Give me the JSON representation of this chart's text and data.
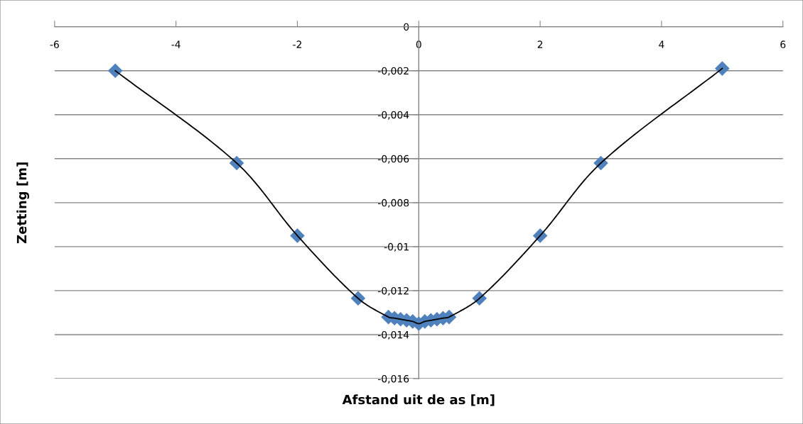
{
  "chart_data": {
    "type": "scatter",
    "xlabel": "Afstand uit de as [m]",
    "ylabel": "Zetting [m]",
    "xlim": [
      -6,
      6
    ],
    "xticks": [
      -6,
      -4,
      -2,
      0,
      2,
      4,
      6
    ],
    "ylim": [
      -0.016,
      0
    ],
    "yticks": [
      {
        "value": -0.016,
        "label": "-0,016"
      },
      {
        "value": -0.014,
        "label": "-0,014"
      },
      {
        "value": -0.012,
        "label": "-0,012"
      },
      {
        "value": -0.01,
        "label": "-0,01"
      },
      {
        "value": -0.008,
        "label": "-0,008"
      },
      {
        "value": -0.006,
        "label": "-0,006"
      },
      {
        "value": -0.004,
        "label": "-0,004"
      },
      {
        "value": -0.002,
        "label": "-0,002"
      },
      0
    ],
    "grid": "y",
    "series": [
      {
        "type": "line",
        "color": "#000000",
        "marker": "none",
        "line_style": "solid",
        "x": [
          -5,
          -3,
          -2,
          -1,
          -0.5,
          -0.4,
          -0.3,
          -0.2,
          -0.1,
          0,
          0.1,
          0.2,
          0.3,
          0.4,
          0.5,
          1,
          2,
          3,
          5
        ],
        "values": [
          -0.002,
          -0.0062,
          -0.0095,
          -0.01235,
          -0.0132,
          -0.01325,
          -0.0133,
          -0.01335,
          -0.0134,
          -0.0135,
          -0.0134,
          -0.01335,
          -0.0133,
          -0.01325,
          -0.0132,
          -0.01235,
          -0.0095,
          -0.0062,
          -0.0019
        ]
      },
      {
        "color": "#4f81bd",
        "marker": "diamond",
        "x": [
          -5,
          -3,
          -2,
          -1,
          -0.5,
          -0.4,
          -0.3,
          -0.2,
          -0.1,
          0,
          0.1,
          0.2,
          0.3,
          0.4,
          0.5,
          1,
          2,
          3,
          5
        ],
        "values": [
          -0.002,
          -0.0062,
          -0.0095,
          -0.01235,
          -0.0132,
          -0.01325,
          -0.0133,
          -0.01335,
          -0.0134,
          -0.0135,
          -0.0134,
          -0.01335,
          -0.0133,
          -0.01325,
          -0.0132,
          -0.01235,
          -0.0095,
          -0.0062,
          -0.0019
        ]
      }
    ]
  }
}
